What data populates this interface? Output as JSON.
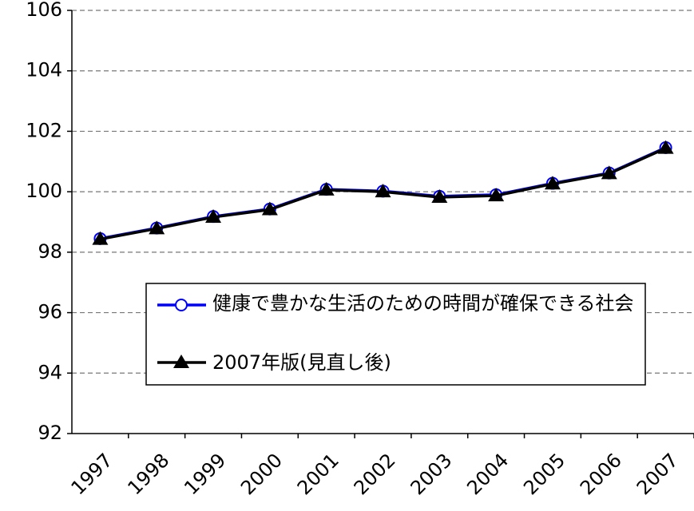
{
  "chart_data": {
    "type": "line",
    "categories": [
      "1997",
      "1998",
      "1999",
      "2000",
      "2001",
      "2002",
      "2003",
      "2004",
      "2005",
      "2006",
      "2007"
    ],
    "series": [
      {
        "name": "健康で豊かな生活のための時間が確保できる社会",
        "color": "#0000ff",
        "marker": "circle",
        "values": [
          98.45,
          98.8,
          99.18,
          99.43,
          100.08,
          100.02,
          99.85,
          99.9,
          100.28,
          100.62,
          101.46
        ]
      },
      {
        "name": "2007年版(見直し後)",
        "color": "#000000",
        "marker": "triangle",
        "values": [
          98.43,
          98.78,
          99.16,
          99.41,
          100.06,
          100.0,
          99.82,
          99.87,
          100.26,
          100.6,
          101.44
        ]
      }
    ],
    "ylim": [
      92,
      106
    ],
    "yticks": [
      92,
      94,
      96,
      98,
      100,
      102,
      104,
      106
    ],
    "grid": true
  }
}
